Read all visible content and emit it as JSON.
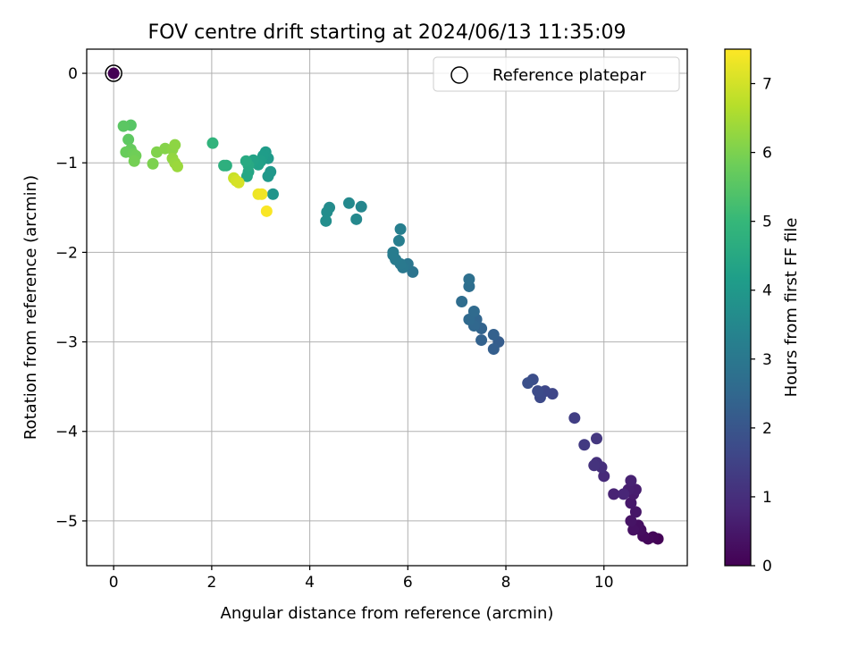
{
  "chart_data": {
    "type": "scatter",
    "title": "FOV centre drift starting at 2024/06/13 11:35:09",
    "xlabel": "Angular distance from reference (arcmin)",
    "ylabel": "Rotation from reference (arcmin)",
    "xlim": [
      -0.55,
      11.7
    ],
    "ylim": [
      -5.5,
      0.27
    ],
    "xticks": [
      0,
      2,
      4,
      6,
      8,
      10
    ],
    "yticks": [
      0,
      -1,
      -2,
      -3,
      -4,
      -5
    ],
    "xtick_labels": [
      "0",
      "2",
      "4",
      "6",
      "8",
      "10"
    ],
    "ytick_labels": [
      "0",
      "−1",
      "−2",
      "−3",
      "−4",
      "−5"
    ],
    "grid": true,
    "legend": {
      "position": "top-right",
      "entries": [
        "Reference platepar"
      ]
    },
    "reference_point": {
      "x": 0,
      "y": 0,
      "hours": 0
    },
    "colorbar": {
      "label": "Hours from first FF file",
      "range": [
        0,
        7.5
      ],
      "ticks": [
        0,
        1,
        2,
        3,
        4,
        5,
        6,
        7
      ],
      "tick_labels": [
        "0",
        "1",
        "2",
        "3",
        "4",
        "5",
        "6",
        "7"
      ],
      "colormap": "viridis",
      "colors": [
        "#440154",
        "#482878",
        "#3e4989",
        "#31688e",
        "#26828e",
        "#1f9e89",
        "#35b779",
        "#6ece58",
        "#b5de2b",
        "#fde725"
      ]
    },
    "points": [
      {
        "x": 11.1,
        "y": -5.2,
        "h": 0.05
      },
      {
        "x": 11.0,
        "y": -5.18,
        "h": 0.1
      },
      {
        "x": 10.9,
        "y": -5.2,
        "h": 0.15
      },
      {
        "x": 10.8,
        "y": -5.17,
        "h": 0.2
      },
      {
        "x": 10.75,
        "y": -5.1,
        "h": 0.25
      },
      {
        "x": 10.7,
        "y": -5.05,
        "h": 0.3
      },
      {
        "x": 10.6,
        "y": -5.1,
        "h": 0.35
      },
      {
        "x": 10.55,
        "y": -5.0,
        "h": 0.4
      },
      {
        "x": 10.65,
        "y": -4.9,
        "h": 0.45
      },
      {
        "x": 10.55,
        "y": -4.8,
        "h": 0.5
      },
      {
        "x": 10.6,
        "y": -4.7,
        "h": 0.55
      },
      {
        "x": 10.65,
        "y": -4.65,
        "h": 0.6
      },
      {
        "x": 10.5,
        "y": -4.65,
        "h": 0.65
      },
      {
        "x": 10.55,
        "y": -4.55,
        "h": 0.7
      },
      {
        "x": 10.2,
        "y": -4.7,
        "h": 0.75
      },
      {
        "x": 10.4,
        "y": -4.7,
        "h": 0.8
      },
      {
        "x": 10.0,
        "y": -4.5,
        "h": 0.9
      },
      {
        "x": 9.95,
        "y": -4.4,
        "h": 1.0
      },
      {
        "x": 9.85,
        "y": -4.35,
        "h": 1.05
      },
      {
        "x": 9.8,
        "y": -4.38,
        "h": 1.1
      },
      {
        "x": 9.85,
        "y": -4.08,
        "h": 1.2
      },
      {
        "x": 9.6,
        "y": -4.15,
        "h": 1.3
      },
      {
        "x": 9.4,
        "y": -3.85,
        "h": 1.4
      },
      {
        "x": 8.95,
        "y": -3.58,
        "h": 1.6
      },
      {
        "x": 8.8,
        "y": -3.55,
        "h": 1.65
      },
      {
        "x": 8.7,
        "y": -3.62,
        "h": 1.7
      },
      {
        "x": 8.65,
        "y": -3.55,
        "h": 1.75
      },
      {
        "x": 8.55,
        "y": -3.42,
        "h": 1.8
      },
      {
        "x": 8.45,
        "y": -3.46,
        "h": 1.85
      },
      {
        "x": 7.85,
        "y": -3.0,
        "h": 2.2
      },
      {
        "x": 7.75,
        "y": -3.08,
        "h": 2.25
      },
      {
        "x": 7.75,
        "y": -2.92,
        "h": 2.3
      },
      {
        "x": 7.5,
        "y": -2.98,
        "h": 2.35
      },
      {
        "x": 7.5,
        "y": -2.85,
        "h": 2.4
      },
      {
        "x": 7.4,
        "y": -2.75,
        "h": 2.45
      },
      {
        "x": 7.35,
        "y": -2.82,
        "h": 2.5
      },
      {
        "x": 7.25,
        "y": -2.75,
        "h": 2.55
      },
      {
        "x": 7.35,
        "y": -2.66,
        "h": 2.6
      },
      {
        "x": 7.1,
        "y": -2.55,
        "h": 2.65
      },
      {
        "x": 7.25,
        "y": -2.38,
        "h": 2.7
      },
      {
        "x": 7.25,
        "y": -2.3,
        "h": 2.75
      },
      {
        "x": 6.1,
        "y": -2.22,
        "h": 2.9
      },
      {
        "x": 6.0,
        "y": -2.13,
        "h": 2.95
      },
      {
        "x": 5.9,
        "y": -2.17,
        "h": 3.0
      },
      {
        "x": 5.85,
        "y": -2.13,
        "h": 3.05
      },
      {
        "x": 5.75,
        "y": -2.08,
        "h": 3.1
      },
      {
        "x": 5.7,
        "y": -2.03,
        "h": 3.12
      },
      {
        "x": 5.7,
        "y": -2.0,
        "h": 3.15
      },
      {
        "x": 5.82,
        "y": -1.87,
        "h": 3.2
      },
      {
        "x": 5.85,
        "y": -1.74,
        "h": 3.25
      },
      {
        "x": 5.05,
        "y": -1.49,
        "h": 3.45
      },
      {
        "x": 4.95,
        "y": -1.63,
        "h": 3.5
      },
      {
        "x": 4.8,
        "y": -1.45,
        "h": 3.55
      },
      {
        "x": 4.4,
        "y": -1.5,
        "h": 3.6
      },
      {
        "x": 4.35,
        "y": -1.55,
        "h": 3.65
      },
      {
        "x": 4.33,
        "y": -1.65,
        "h": 3.7
      },
      {
        "x": 3.25,
        "y": -1.35,
        "h": 3.9
      },
      {
        "x": 3.2,
        "y": -1.1,
        "h": 3.95
      },
      {
        "x": 3.15,
        "y": -1.15,
        "h": 4.0
      },
      {
        "x": 3.15,
        "y": -0.95,
        "h": 4.05
      },
      {
        "x": 3.1,
        "y": -0.88,
        "h": 4.1
      },
      {
        "x": 3.05,
        "y": -0.92,
        "h": 4.15
      },
      {
        "x": 3.0,
        "y": -0.98,
        "h": 4.2
      },
      {
        "x": 2.95,
        "y": -1.02,
        "h": 4.25
      },
      {
        "x": 2.85,
        "y": -0.97,
        "h": 4.3
      },
      {
        "x": 2.75,
        "y": -1.1,
        "h": 4.4
      },
      {
        "x": 2.72,
        "y": -1.15,
        "h": 4.45
      },
      {
        "x": 2.75,
        "y": -1.03,
        "h": 4.5
      },
      {
        "x": 2.7,
        "y": -0.98,
        "h": 4.55
      },
      {
        "x": 2.3,
        "y": -1.03,
        "h": 4.7
      },
      {
        "x": 2.25,
        "y": -1.03,
        "h": 4.75
      },
      {
        "x": 2.02,
        "y": -0.78,
        "h": 4.85
      },
      {
        "x": 0.35,
        "y": -0.58,
        "h": 5.5
      },
      {
        "x": 0.2,
        "y": -0.59,
        "h": 5.55
      },
      {
        "x": 0.3,
        "y": -0.74,
        "h": 5.6
      },
      {
        "x": 0.35,
        "y": -0.85,
        "h": 5.7
      },
      {
        "x": 0.25,
        "y": -0.88,
        "h": 5.75
      },
      {
        "x": 0.4,
        "y": -0.9,
        "h": 5.8
      },
      {
        "x": 0.45,
        "y": -0.92,
        "h": 5.85
      },
      {
        "x": 0.42,
        "y": -0.98,
        "h": 5.9
      },
      {
        "x": 0.8,
        "y": -1.01,
        "h": 6.0
      },
      {
        "x": 0.88,
        "y": -0.88,
        "h": 6.05
      },
      {
        "x": 1.05,
        "y": -0.84,
        "h": 6.1
      },
      {
        "x": 1.2,
        "y": -0.85,
        "h": 6.15
      },
      {
        "x": 1.25,
        "y": -0.8,
        "h": 6.2
      },
      {
        "x": 1.2,
        "y": -0.95,
        "h": 6.25
      },
      {
        "x": 1.25,
        "y": -1.0,
        "h": 6.3
      },
      {
        "x": 1.3,
        "y": -1.04,
        "h": 6.35
      },
      {
        "x": 2.45,
        "y": -1.17,
        "h": 6.9
      },
      {
        "x": 2.5,
        "y": -1.2,
        "h": 7.0
      },
      {
        "x": 2.55,
        "y": -1.22,
        "h": 7.05
      },
      {
        "x": 2.95,
        "y": -1.35,
        "h": 7.3
      },
      {
        "x": 3.02,
        "y": -1.35,
        "h": 7.35
      },
      {
        "x": 3.12,
        "y": -1.54,
        "h": 7.45
      }
    ]
  }
}
